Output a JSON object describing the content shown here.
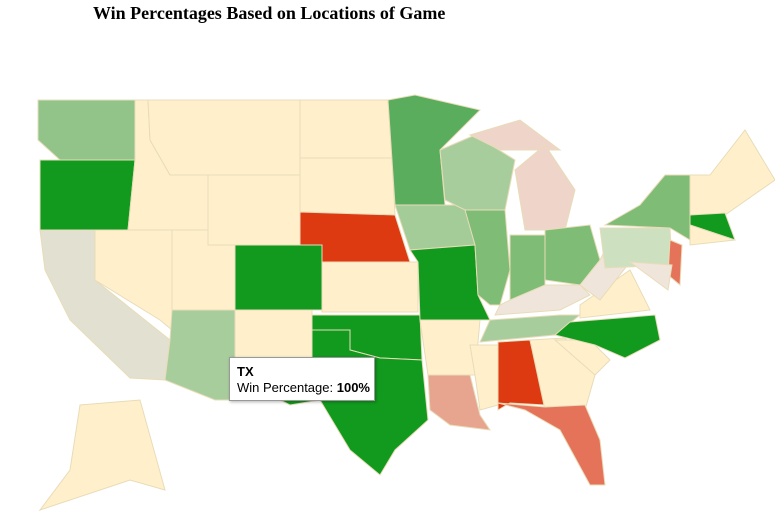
{
  "header": {
    "title": "Win Percentages Based on Locations of Game"
  },
  "map": {
    "region_colors": [
      "#92c48a",
      "#119a1e",
      "#e2e0d0",
      "#fff0cb",
      "#fff0cb",
      "#fff0cb",
      "#fff0cb",
      "#fff0cb",
      "#a8cd9c",
      "#119a1e",
      "#fff0cb",
      "#fff0cb",
      "#fff0cb",
      "#dd3a12",
      "#fff0cb",
      "#119a1e",
      "#119a1e",
      "#5aad5d",
      "#a3cc99",
      "#119a1e",
      "#fff0cb",
      "#e7a48e",
      "#a8cd9c",
      "#7fbc75",
      "#efd5c9",
      "#efd5c9",
      "#7fbc75",
      "#7fbc75",
      "#f0e5da",
      "#a8cd9c",
      "#fff0cb",
      "#dd3a12",
      "#fff0cb",
      "#e5735a",
      "#fff0cb",
      "#119a1e",
      "#fff0cb",
      "#f0e5da",
      "#cde1c0",
      "#7fbc75",
      "#e5735a",
      "#f0e5da",
      "#fff0cb",
      "#119a1e",
      "#fff0cb",
      "#fff0cb"
    ]
  },
  "tooltip": {
    "title": "TX",
    "label": "Win Percentage:",
    "value": "100%"
  }
}
